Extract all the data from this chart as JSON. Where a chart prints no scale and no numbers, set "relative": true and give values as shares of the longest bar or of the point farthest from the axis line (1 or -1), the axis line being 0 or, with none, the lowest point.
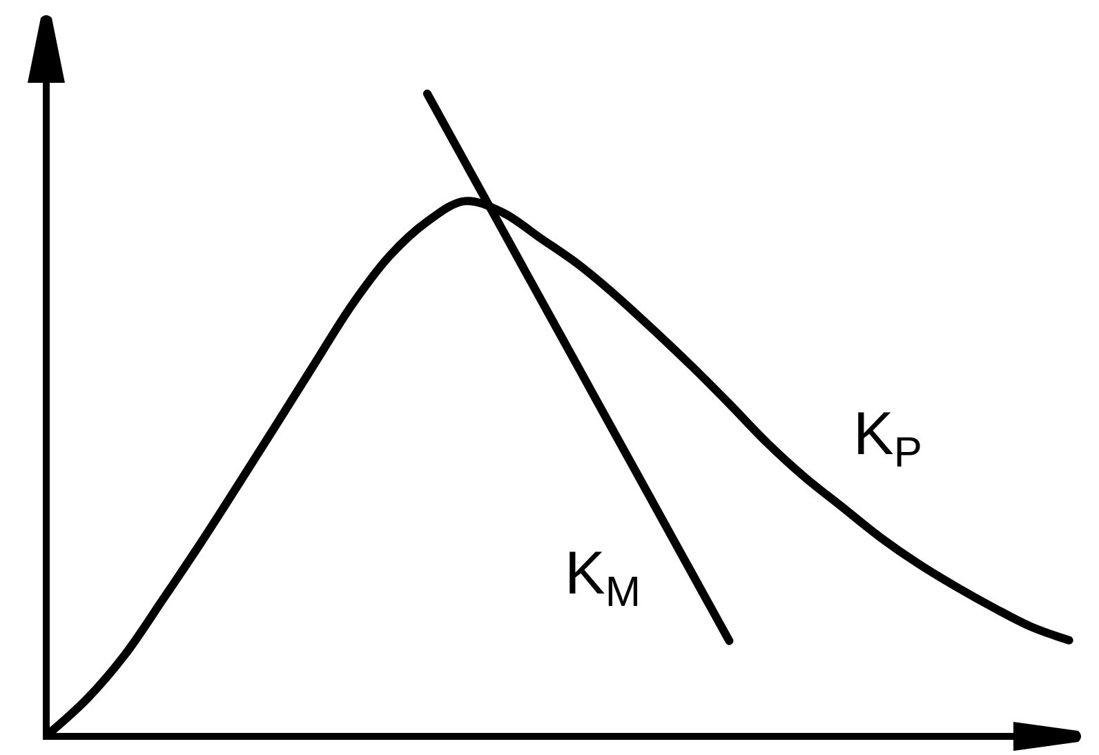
{
  "chart_data": {
    "type": "line",
    "relative": true,
    "categories": [
      null,
      null,
      null,
      null,
      null,
      null,
      null,
      null,
      null,
      null,
      null,
      null,
      null,
      null,
      null,
      null,
      null,
      null,
      null,
      null,
      null,
      null,
      null,
      null,
      null,
      null,
      null,
      null
    ],
    "series": [
      {
        "name": "K$_{M}$",
        "color": "#000000",
        "values": [
          null,
          null,
          null,
          null,
          null,
          null,
          null,
          null,
          null,
          null,
          1.0,
          0.893,
          0.786,
          0.679,
          0.572,
          0.465,
          0.358,
          0.251,
          0.144,
          null,
          null,
          null,
          null,
          null,
          null,
          null,
          null,
          null
        ]
      },
      {
        "name": "K$_{P}$",
        "color": "#000000",
        "values": [
          0,
          0.054,
          0.123,
          0.209,
          0.297,
          0.389,
          0.482,
          0.576,
          0.669,
          0.746,
          0.8,
          0.832,
          0.814,
          0.774,
          0.733,
          0.684,
          0.63,
          0.574,
          0.515,
          0.454,
          0.4,
          0.353,
          0.306,
          0.265,
          0.229,
          0.196,
          0.166,
          0.145
        ]
      }
    ]
  }
}
